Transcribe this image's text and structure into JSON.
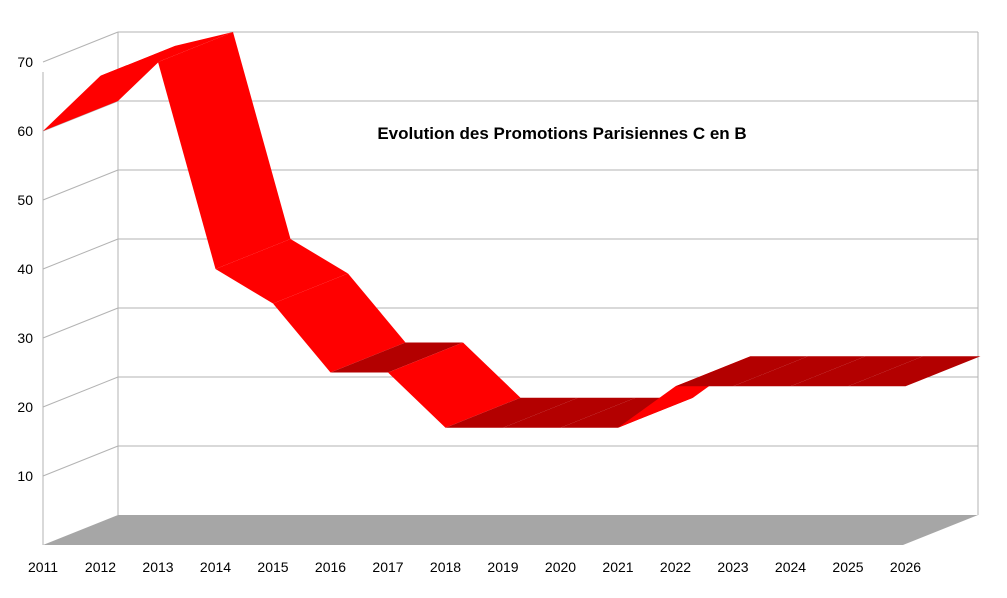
{
  "chart_data": {
    "type": "line",
    "style": "3d-ribbon",
    "title": "Evolution des Promotions Parisiennes C en B",
    "xlabel": "",
    "ylabel": "",
    "categories": [
      "2011",
      "2012",
      "2013",
      "2014",
      "2015",
      "2016",
      "2017",
      "2018",
      "2019",
      "2020",
      "2021",
      "2022",
      "2023",
      "2024",
      "2025",
      "2026"
    ],
    "series": [
      {
        "values": [
          60,
          68,
          70,
          40,
          35,
          25,
          25,
          17,
          17,
          17,
          17,
          23,
          23,
          23,
          23,
          23
        ],
        "color": "#ff0000"
      }
    ],
    "ylim": [
      0,
      70
    ],
    "yticks": [
      10,
      20,
      30,
      40,
      50,
      60,
      70
    ],
    "grid": true,
    "legend": "none",
    "colors": {
      "front": "#ff0000",
      "back_face": "#b30000",
      "floor": "#a6a6a6",
      "grid": "#b3b3b3"
    }
  }
}
